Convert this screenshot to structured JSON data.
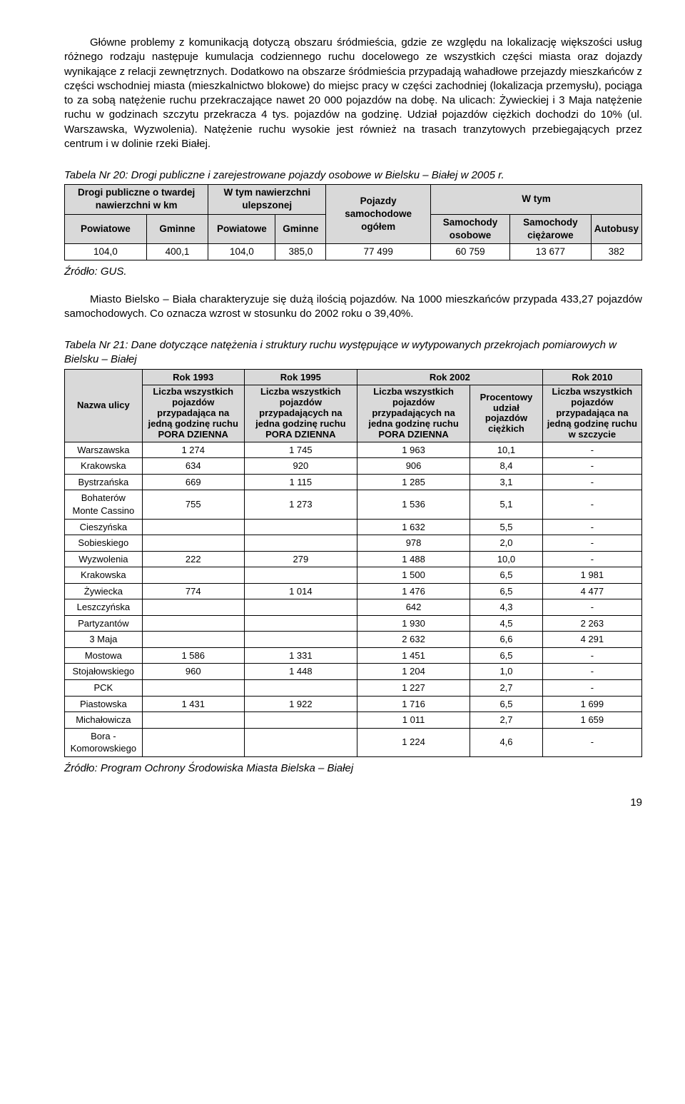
{
  "para1": "Główne problemy z komunikacją dotyczą obszaru śródmieścia, gdzie ze względu na lokalizację większości usług różnego rodzaju następuje kumulacja codziennego ruchu docelowego ze wszystkich części miasta oraz dojazdy wynikające z relacji zewnętrznych. Dodatkowo na obszarze śródmieścia przypadają wahadłowe przejazdy mieszkańców z części wschodniej miasta (mieszkalnictwo blokowe) do miejsc pracy w części zachodniej (lokalizacja przemysłu), pociąga to za sobą natężenie ruchu przekraczające nawet 20 000 pojazdów na dobę. Na ulicach: Żywieckiej i 3 Maja natężenie ruchu w godzinach szczytu przekracza 4 tys. pojazdów na godzinę. Udział pojazdów ciężkich dochodzi do 10% (ul. Warszawska, Wyzwolenia). Natężenie ruchu wysokie jest również na trasach tranzytowych przebiegających przez centrum i w dolinie rzeki Białej.",
  "table20": {
    "caption": "Tabela Nr 20: Drogi publiczne i zarejestrowane pojazdy osobowe w Bielsku – Białej w 2005 r.",
    "h_drogi": "Drogi publiczne o twardej nawierzchni w km",
    "h_ulepsz": "W tym nawierzchni ulepszonej",
    "h_pojazdy": "Pojazdy samochodowe ogółem",
    "h_wtym": "W tym",
    "h_pow": "Powiatowe",
    "h_gm": "Gminne",
    "h_so": "Samochody osobowe",
    "h_sc": "Samochody ciężarowe",
    "h_au": "Autobusy",
    "row": [
      "104,0",
      "400,1",
      "104,0",
      "385,0",
      "77 499",
      "60 759",
      "13 677",
      "382"
    ]
  },
  "source1": "Źródło: GUS.",
  "para2": "Miasto Bielsko – Biała charakteryzuje się dużą ilością pojazdów. Na 1000 mieszkańców przypada 433,27 pojazdów samochodowych. Co oznacza wzrost w stosunku do 2002 roku o 39,40%.",
  "table21": {
    "caption": "Tabela Nr 21: Dane dotyczące natężenia i struktury ruchu występujące w wytypowanych przekrojach pomiarowych w Bielsku – Białej",
    "h_nazwa": "Nazwa ulicy",
    "h_1993": "Rok 1993",
    "h_1995": "Rok 1995",
    "h_2002": "Rok 2002",
    "h_2010": "Rok 2010",
    "sh_1993": "Liczba wszystkich pojazdów przypadająca na jedną godzinę ruchu PORA DZIENNA",
    "sh_1995": "Liczba wszystkich pojazdów przypadających na jedna godzinę ruchu PORA DZIENNA",
    "sh_2002a": "Liczba wszystkich pojazdów przypadających na jedna godzinę ruchu PORA DZIENNA",
    "sh_2002b": "Procentowy udział pojazdów ciężkich",
    "sh_2010": "Liczba wszystkich pojazdów przypadająca na jedną godzinę ruchu w szczycie",
    "rows": [
      [
        "Warszawska",
        "1 274",
        "1 745",
        "1 963",
        "10,1",
        "-"
      ],
      [
        "Krakowska",
        "634",
        "920",
        "906",
        "8,4",
        "-"
      ],
      [
        "Bystrzańska",
        "669",
        "1 115",
        "1 285",
        "3,1",
        "-"
      ],
      [
        "Bohaterów Monte Cassino",
        "755",
        "1 273",
        "1 536",
        "5,1",
        "-"
      ],
      [
        "Cieszyńska",
        "",
        "",
        "1 632",
        "5,5",
        "-"
      ],
      [
        "Sobieskiego",
        "",
        "",
        "978",
        "2,0",
        "-"
      ],
      [
        "Wyzwolenia",
        "222",
        "279",
        "1 488",
        "10,0",
        "-"
      ],
      [
        "Krakowska",
        "",
        "",
        "1 500",
        "6,5",
        "1 981"
      ],
      [
        "Żywiecka",
        "774",
        "1 014",
        "1 476",
        "6,5",
        "4 477"
      ],
      [
        "Leszczyńska",
        "",
        "",
        "642",
        "4,3",
        "-"
      ],
      [
        "Partyzantów",
        "",
        "",
        "1 930",
        "4,5",
        "2 263"
      ],
      [
        "3 Maja",
        "",
        "",
        "2 632",
        "6,6",
        "4 291"
      ],
      [
        "Mostowa",
        "1 586",
        "1 331",
        "1 451",
        "6,5",
        "-"
      ],
      [
        "Stojałowskiego",
        "960",
        "1 448",
        "1 204",
        "1,0",
        "-"
      ],
      [
        "PCK",
        "",
        "",
        "1 227",
        "2,7",
        "-"
      ],
      [
        "Piastowska",
        "1 431",
        "1 922",
        "1 716",
        "6,5",
        "1 699"
      ],
      [
        "Michałowicza",
        "",
        "",
        "1 011",
        "2,7",
        "1 659"
      ],
      [
        "Bora - Komorowskiego",
        "",
        "",
        "1 224",
        "4,6",
        "-"
      ]
    ]
  },
  "source2": "Źródło: Program Ochrony Środowiska Miasta Bielska – Białej",
  "pageNum": "19"
}
